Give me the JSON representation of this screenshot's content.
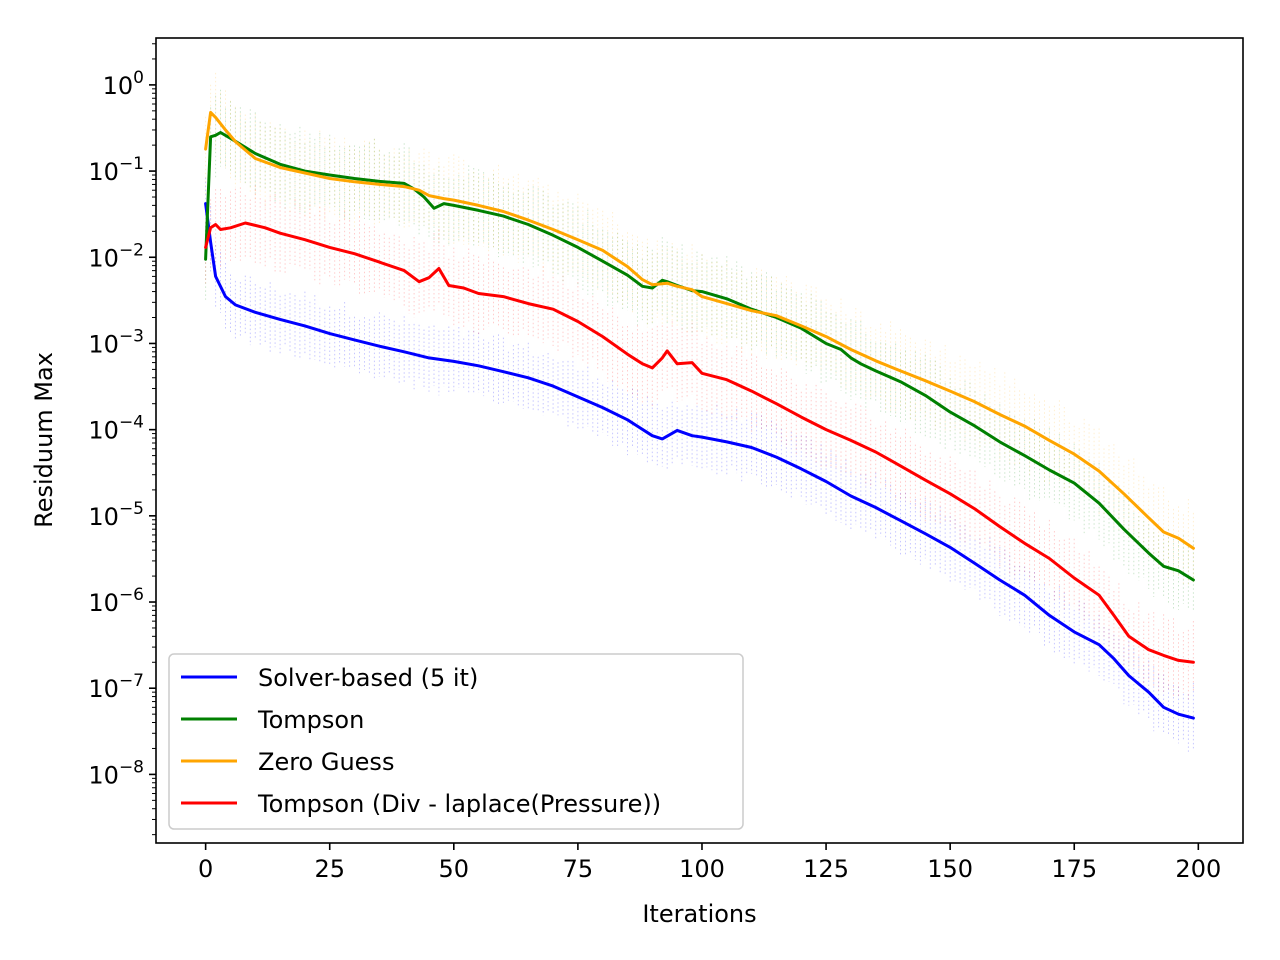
{
  "chart_data": {
    "type": "line",
    "xlabel": "Iterations",
    "ylabel": "Residuum Max",
    "yscale": "log",
    "xlim": [
      -10,
      209
    ],
    "ylim": [
      1.6e-09,
      3.5
    ],
    "xticks": [
      0,
      25,
      50,
      75,
      100,
      125,
      150,
      175,
      200
    ],
    "xtick_labels": [
      "0",
      "25",
      "50",
      "75",
      "100",
      "125",
      "150",
      "175",
      "200"
    ],
    "yticks": [
      1.0,
      0.1,
      0.01,
      0.001,
      0.0001,
      1e-05,
      1e-06,
      1e-07,
      1e-08
    ],
    "ytick_labels": [
      {
        "base": "10",
        "exp": "0"
      },
      {
        "base": "10",
        "exp": "−1"
      },
      {
        "base": "10",
        "exp": "−2"
      },
      {
        "base": "10",
        "exp": "−3"
      },
      {
        "base": "10",
        "exp": "−4"
      },
      {
        "base": "10",
        "exp": "−5"
      },
      {
        "base": "10",
        "exp": "−6"
      },
      {
        "base": "10",
        "exp": "−7"
      },
      {
        "base": "10",
        "exp": "−8"
      }
    ],
    "grid": false,
    "legend_position": "lower-left",
    "series": [
      {
        "name": "Solver-based (5 it)",
        "color": "#0000ff",
        "x": [
          0,
          1,
          2,
          4,
          6,
          10,
          15,
          20,
          25,
          30,
          35,
          40,
          45,
          50,
          55,
          60,
          65,
          70,
          75,
          80,
          85,
          90,
          92,
          95,
          98,
          100,
          105,
          110,
          115,
          120,
          125,
          130,
          135,
          140,
          145,
          150,
          155,
          160,
          165,
          170,
          175,
          180,
          183,
          186,
          190,
          193,
          196,
          199
        ],
        "y": [
          0.042,
          0.015,
          0.006,
          0.0035,
          0.0028,
          0.0023,
          0.0019,
          0.0016,
          0.0013,
          0.0011,
          0.00093,
          0.0008,
          0.00068,
          0.00062,
          0.00055,
          0.00047,
          0.0004,
          0.00032,
          0.00024,
          0.00018,
          0.00013,
          8.5e-05,
          7.8e-05,
          9.8e-05,
          8.5e-05,
          8.2e-05,
          7.2e-05,
          6.2e-05,
          4.8e-05,
          3.5e-05,
          2.5e-05,
          1.7e-05,
          1.25e-05,
          8.8e-06,
          6.2e-06,
          4.3e-06,
          2.8e-06,
          1.8e-06,
          1.2e-06,
          7e-07,
          4.5e-07,
          3.2e-07,
          2.2e-07,
          1.4e-07,
          9e-08,
          6e-08,
          5e-08,
          4.5e-08
        ]
      },
      {
        "name": "Tompson",
        "color": "#008000",
        "x": [
          0,
          1,
          2,
          3,
          5,
          10,
          15,
          20,
          25,
          30,
          35,
          40,
          42,
          44,
          46,
          48,
          50,
          55,
          60,
          65,
          70,
          75,
          80,
          85,
          88,
          90,
          92,
          93,
          95,
          98,
          100,
          105,
          110,
          115,
          120,
          125,
          128,
          130,
          132,
          135,
          140,
          145,
          150,
          155,
          160,
          165,
          170,
          175,
          180,
          185,
          190,
          193,
          196,
          199
        ],
        "y": [
          0.0095,
          0.25,
          0.26,
          0.28,
          0.24,
          0.16,
          0.12,
          0.1,
          0.09,
          0.082,
          0.076,
          0.072,
          0.062,
          0.05,
          0.037,
          0.042,
          0.04,
          0.035,
          0.03,
          0.024,
          0.018,
          0.013,
          0.009,
          0.0062,
          0.0046,
          0.0044,
          0.0054,
          0.0052,
          0.0047,
          0.0041,
          0.004,
          0.0033,
          0.0025,
          0.002,
          0.0015,
          0.001,
          0.00085,
          0.00068,
          0.00058,
          0.00048,
          0.00036,
          0.00025,
          0.00016,
          0.00011,
          7.2e-05,
          5e-05,
          3.4e-05,
          2.4e-05,
          1.4e-05,
          7e-06,
          3.7e-06,
          2.6e-06,
          2.3e-06,
          1.8e-06
        ]
      },
      {
        "name": "Zero Guess",
        "color": "#ffa500",
        "x": [
          0,
          1,
          2,
          4,
          6,
          10,
          15,
          20,
          25,
          30,
          35,
          40,
          43,
          45,
          48,
          50,
          55,
          60,
          65,
          70,
          75,
          80,
          85,
          88,
          90,
          93,
          95,
          98,
          100,
          105,
          110,
          115,
          120,
          125,
          130,
          135,
          140,
          145,
          150,
          155,
          160,
          165,
          170,
          175,
          180,
          185,
          190,
          193,
          196,
          199
        ],
        "y": [
          0.18,
          0.48,
          0.42,
          0.3,
          0.22,
          0.14,
          0.11,
          0.095,
          0.082,
          0.075,
          0.07,
          0.066,
          0.06,
          0.052,
          0.048,
          0.046,
          0.04,
          0.034,
          0.027,
          0.021,
          0.016,
          0.012,
          0.0078,
          0.0055,
          0.0048,
          0.005,
          0.0046,
          0.0042,
          0.0035,
          0.0029,
          0.0024,
          0.0021,
          0.0016,
          0.0012,
          0.00085,
          0.00063,
          0.00048,
          0.00037,
          0.00028,
          0.00021,
          0.00015,
          0.00011,
          7.5e-05,
          5.2e-05,
          3.3e-05,
          1.8e-05,
          9.5e-06,
          6.5e-06,
          5.5e-06,
          4.2e-06
        ]
      },
      {
        "name": "Tompson (Div - laplace(Pressure))",
        "color": "#ff0000",
        "x": [
          0,
          1,
          2,
          3,
          5,
          8,
          12,
          15,
          20,
          25,
          30,
          35,
          40,
          43,
          45,
          47,
          49,
          52,
          55,
          60,
          65,
          70,
          75,
          80,
          85,
          88,
          90,
          92,
          93,
          95,
          98,
          100,
          105,
          110,
          115,
          120,
          125,
          130,
          135,
          140,
          145,
          150,
          155,
          160,
          165,
          170,
          175,
          180,
          183,
          186,
          190,
          193,
          196,
          199
        ],
        "y": [
          0.013,
          0.022,
          0.024,
          0.021,
          0.022,
          0.025,
          0.022,
          0.019,
          0.016,
          0.013,
          0.011,
          0.0088,
          0.007,
          0.0052,
          0.0058,
          0.0074,
          0.0047,
          0.0044,
          0.0038,
          0.0035,
          0.0029,
          0.0025,
          0.0018,
          0.0012,
          0.00075,
          0.00058,
          0.00052,
          0.00068,
          0.00082,
          0.00058,
          0.0006,
          0.00045,
          0.00038,
          0.00028,
          0.0002,
          0.00014,
          0.0001,
          7.5e-05,
          5.5e-05,
          3.8e-05,
          2.6e-05,
          1.8e-05,
          1.2e-05,
          7.5e-06,
          4.8e-06,
          3.2e-06,
          1.9e-06,
          1.2e-06,
          7e-07,
          4e-07,
          2.8e-07,
          2.4e-07,
          2.1e-07,
          2e-07
        ]
      }
    ]
  }
}
